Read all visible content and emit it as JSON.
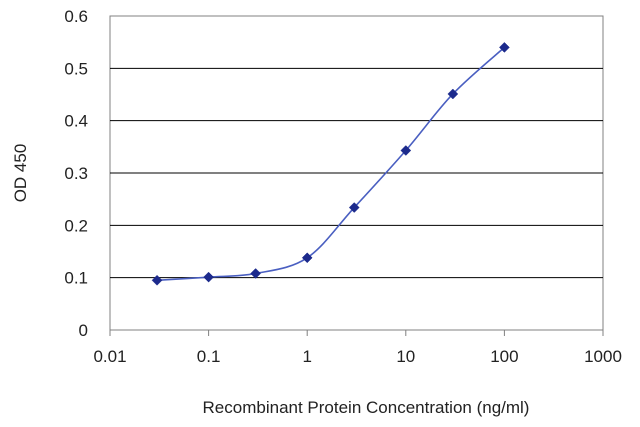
{
  "chart_data": {
    "type": "line",
    "title": "",
    "xlabel": "Recombinant Protein Concentration (ng/ml)",
    "ylabel": "OD 450",
    "xscale": "log",
    "xlim": [
      0.01,
      1000
    ],
    "ylim": [
      0,
      0.6
    ],
    "x_ticks": [
      "0.01",
      "0.1",
      "1",
      "10",
      "100",
      "1000"
    ],
    "x_tick_values": [
      0.01,
      0.1,
      1,
      10,
      100,
      1000
    ],
    "y_ticks": [
      "0",
      "0.1",
      "0.2",
      "0.3",
      "0.4",
      "0.5",
      "0.6"
    ],
    "y_tick_values": [
      0,
      0.1,
      0.2,
      0.3,
      0.4,
      0.5,
      0.6
    ],
    "grid": "horizontal",
    "legend": "none",
    "series": [
      {
        "x": [
          0.03,
          0.1,
          0.3,
          1,
          3,
          10,
          30,
          100
        ],
        "y": [
          0.095,
          0.101,
          0.108,
          0.138,
          0.234,
          0.343,
          0.451,
          0.54
        ],
        "color": "#1c2a8c",
        "line_color": "#4a5fc1",
        "marker": "diamond"
      }
    ]
  },
  "colors": {
    "grid": "#000000",
    "frame": "#808080",
    "text": "#222222"
  }
}
